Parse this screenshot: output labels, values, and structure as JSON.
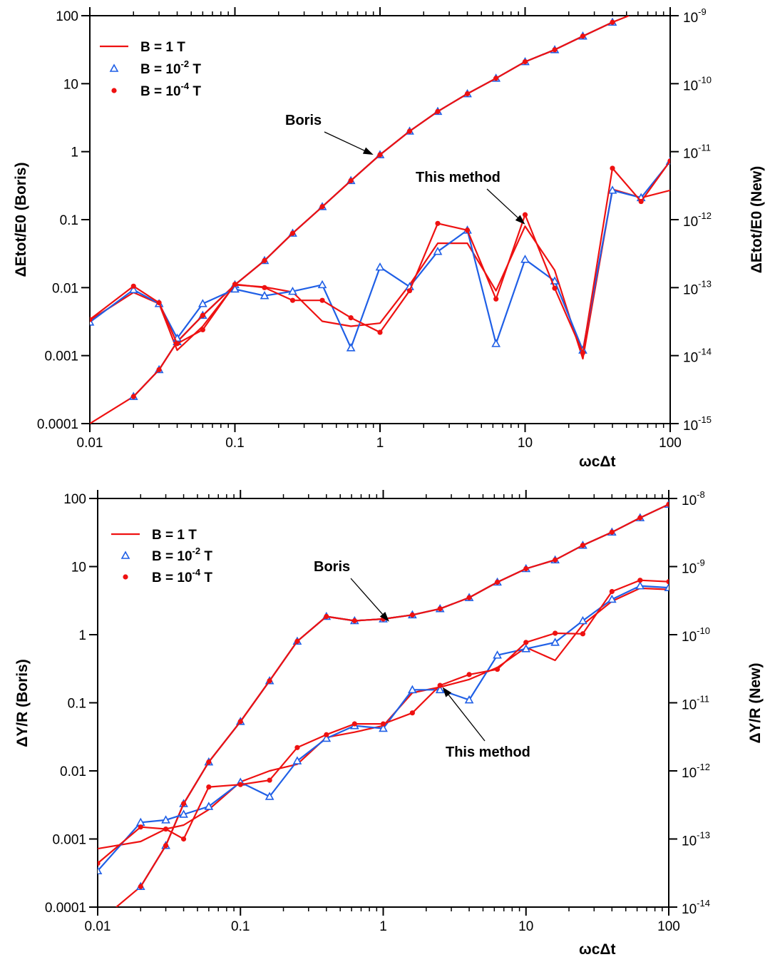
{
  "colors": {
    "red": "#ee1111",
    "blue": "#1f5fe6",
    "axis": "#000000"
  },
  "chart_data": [
    {
      "type": "line",
      "xlabel": "ωcΔt",
      "ylabel": "ΔEtot/E0 (Boris)",
      "y2label": "ΔEtot/E0 (New)",
      "x_scale": "log",
      "y_scale": "log",
      "y2_scale": "log",
      "xlim": [
        0.01,
        100
      ],
      "ylim": [
        0.0001,
        100
      ],
      "y2lim": [
        1e-15,
        1e-09
      ],
      "x_ticks": [
        "0.01",
        "0.1",
        "1",
        "10",
        "100"
      ],
      "y_ticks": [
        "0.0001",
        "0.001",
        "0.01",
        "0.1",
        "1",
        "10",
        "100"
      ],
      "y2_ticks": [
        {
          "base": "10",
          "exp": "-15"
        },
        {
          "base": "10",
          "exp": "-14"
        },
        {
          "base": "10",
          "exp": "-13"
        },
        {
          "base": "10",
          "exp": "-12"
        },
        {
          "base": "10",
          "exp": "-11"
        },
        {
          "base": "10",
          "exp": "-10"
        },
        {
          "base": "10",
          "exp": "-9"
        }
      ],
      "grid": false,
      "legend_position": "top-left",
      "legend": [
        {
          "label": "B = 1 T",
          "marker": "line",
          "color": "red"
        },
        {
          "label": "B = 10",
          "exp": "-2",
          "unit": " T",
          "marker": "triangle",
          "color": "blue"
        },
        {
          "label": "B = 10",
          "exp": "-4",
          "unit": " T",
          "marker": "circle",
          "color": "red"
        }
      ],
      "annotations": [
        {
          "text": "Boris",
          "arrow_target": [
            0.9,
            0.9
          ]
        },
        {
          "text": "This method",
          "arrow_target": [
            10,
            0.085
          ]
        }
      ],
      "series": [
        {
          "name": "Boris, B = 1 T",
          "axis": "left",
          "marker": "line",
          "color": "red",
          "x": [
            0.01,
            0.02,
            0.03,
            0.04,
            0.06,
            0.1,
            0.16,
            0.25,
            0.4,
            0.63,
            1,
            1.6,
            2.5,
            4,
            6.3,
            10,
            16,
            25,
            40,
            52
          ],
          "y": [
            0.0001,
            0.00025,
            0.00062,
            0.0016,
            0.0039,
            0.011,
            0.025,
            0.063,
            0.155,
            0.375,
            0.9,
            2.0,
            3.9,
            7.1,
            12.0,
            21.0,
            31.5,
            50.0,
            80.0,
            100.0
          ]
        },
        {
          "name": "Boris, B = 10^-2 T",
          "axis": "left",
          "marker": "triangle",
          "color": "blue",
          "x": [
            0.02,
            0.03,
            0.04,
            0.06,
            0.1,
            0.16,
            0.25,
            0.4,
            0.63,
            1,
            1.6,
            2.5,
            4,
            6.3,
            10,
            16,
            25,
            40
          ],
          "y": [
            0.00025,
            0.00062,
            0.0016,
            0.0039,
            0.011,
            0.025,
            0.063,
            0.155,
            0.375,
            0.9,
            2.0,
            3.9,
            7.1,
            12.0,
            21.0,
            31.5,
            50.0,
            80.0
          ]
        },
        {
          "name": "Boris, B = 10^-4 T",
          "axis": "left",
          "marker": "circle",
          "color": "red",
          "x": [
            0.02,
            0.03,
            0.04,
            0.06,
            0.1,
            0.16,
            0.25,
            0.4,
            0.63,
            1,
            1.6,
            2.5,
            4,
            6.3,
            10,
            16,
            25,
            40
          ],
          "y": [
            0.00025,
            0.00062,
            0.0016,
            0.0039,
            0.011,
            0.025,
            0.063,
            0.155,
            0.375,
            0.9,
            2.0,
            3.9,
            7.1,
            12.0,
            21.0,
            31.5,
            50.0,
            80.0
          ]
        },
        {
          "name": "This method, B = 1 T",
          "axis": "left",
          "marker": "line",
          "color": "red",
          "x": [
            0.01,
            0.02,
            0.03,
            0.04,
            0.06,
            0.1,
            0.16,
            0.25,
            0.4,
            0.63,
            1,
            1.6,
            2.5,
            4,
            6.3,
            10,
            16,
            25,
            40,
            63,
            100
          ],
          "y": [
            0.0033,
            0.0085,
            0.0058,
            0.0012,
            0.0027,
            0.011,
            0.0102,
            0.0086,
            0.0032,
            0.0027,
            0.003,
            0.011,
            0.045,
            0.045,
            0.009,
            0.08,
            0.018,
            0.0009,
            0.28,
            0.21,
            0.27
          ]
        },
        {
          "name": "This method, B = 10^-2 T",
          "axis": "left",
          "marker": "triangle",
          "color": "blue",
          "x": [
            0.01,
            0.02,
            0.03,
            0.04,
            0.06,
            0.1,
            0.16,
            0.25,
            0.4,
            0.63,
            1,
            1.6,
            2.5,
            4,
            6.3,
            10,
            16,
            25,
            40,
            63,
            100
          ],
          "y": [
            0.0031,
            0.0093,
            0.0058,
            0.0018,
            0.0058,
            0.0095,
            0.0076,
            0.0088,
            0.011,
            0.0013,
            0.02,
            0.0103,
            0.034,
            0.07,
            0.0015,
            0.026,
            0.0125,
            0.0012,
            0.27,
            0.21,
            0.72
          ]
        },
        {
          "name": "This method, B = 10^-4 T",
          "axis": "left",
          "marker": "circle",
          "color": "red",
          "x": [
            0.01,
            0.02,
            0.03,
            0.04,
            0.06,
            0.1,
            0.16,
            0.25,
            0.4,
            0.63,
            1,
            1.6,
            2.5,
            4,
            6.3,
            10,
            16,
            25,
            40,
            63,
            100
          ],
          "y": [
            0.0034,
            0.0105,
            0.006,
            0.0015,
            0.0024,
            0.0112,
            0.01,
            0.0065,
            0.0065,
            0.0036,
            0.0022,
            0.009,
            0.088,
            0.07,
            0.0068,
            0.118,
            0.0098,
            0.0011,
            0.57,
            0.185,
            0.73
          ]
        }
      ]
    },
    {
      "type": "line",
      "xlabel": "ωcΔt",
      "ylabel": "ΔY/R (Boris)",
      "y2label": "ΔY/R (New)",
      "x_scale": "log",
      "y_scale": "log",
      "y2_scale": "log",
      "xlim": [
        0.01,
        100
      ],
      "ylim": [
        0.0001,
        100
      ],
      "y2lim": [
        1e-14,
        1e-08
      ],
      "x_ticks": [
        "0.01",
        "0.1",
        "1",
        "10",
        "100"
      ],
      "y_ticks": [
        "0.0001",
        "0.001",
        "0.01",
        "0.1",
        "1",
        "10",
        "100"
      ],
      "y2_ticks": [
        {
          "base": "10",
          "exp": "-14"
        },
        {
          "base": "10",
          "exp": "-13"
        },
        {
          "base": "10",
          "exp": "-12"
        },
        {
          "base": "10",
          "exp": "-11"
        },
        {
          "base": "10",
          "exp": "-10"
        },
        {
          "base": "10",
          "exp": "-9"
        },
        {
          "base": "10",
          "exp": "-8"
        }
      ],
      "grid": false,
      "legend_position": "top-left",
      "legend": [
        {
          "label": "B = 1 T",
          "marker": "line",
          "color": "red"
        },
        {
          "label": "B = 10",
          "exp": "-2",
          "unit": " T",
          "marker": "triangle",
          "color": "blue"
        },
        {
          "label": "B = 10",
          "exp": "-4",
          "unit": " T",
          "marker": "circle",
          "color": "red"
        }
      ],
      "annotations": [
        {
          "text": "Boris",
          "arrow_target": [
            1.1,
            1.55
          ]
        },
        {
          "text": "This method",
          "arrow_target": [
            2.6,
            0.17
          ]
        }
      ],
      "series": [
        {
          "name": "Boris, B = 1 T",
          "axis": "left",
          "marker": "line",
          "color": "red",
          "x": [
            0.0135,
            0.02,
            0.03,
            0.04,
            0.06,
            0.1,
            0.16,
            0.25,
            0.4,
            0.63,
            1,
            1.6,
            2.5,
            4,
            6.3,
            10,
            16,
            25,
            40,
            63,
            100
          ],
          "y": [
            0.0001,
            0.0002,
            0.0008,
            0.0033,
            0.0135,
            0.053,
            0.21,
            0.8,
            1.85,
            1.6,
            1.7,
            1.95,
            2.4,
            3.5,
            5.9,
            9.3,
            12.5,
            20.5,
            32.0,
            52.0,
            82.0
          ]
        },
        {
          "name": "Boris, B = 10^-2 T",
          "axis": "left",
          "marker": "triangle",
          "color": "blue",
          "x": [
            0.02,
            0.03,
            0.04,
            0.06,
            0.1,
            0.16,
            0.25,
            0.4,
            0.63,
            1,
            1.6,
            2.5,
            4,
            6.3,
            10,
            16,
            25,
            40,
            63,
            100
          ],
          "y": [
            0.0002,
            0.0008,
            0.0033,
            0.0135,
            0.053,
            0.21,
            0.8,
            1.85,
            1.6,
            1.7,
            1.95,
            2.4,
            3.5,
            5.9,
            9.3,
            12.5,
            20.5,
            32.0,
            52.0,
            82.0
          ]
        },
        {
          "name": "Boris, B = 10^-4 T",
          "axis": "left",
          "marker": "circle",
          "color": "red",
          "x": [
            0.02,
            0.03,
            0.04,
            0.06,
            0.1,
            0.16,
            0.25,
            0.4,
            0.63,
            1,
            1.6,
            2.5,
            4,
            6.3,
            10,
            16,
            25,
            40,
            63,
            100
          ],
          "y": [
            0.0002,
            0.0008,
            0.0033,
            0.0135,
            0.053,
            0.21,
            0.8,
            1.85,
            1.6,
            1.7,
            1.95,
            2.4,
            3.5,
            5.9,
            9.3,
            12.5,
            20.5,
            32.0,
            52.0,
            82.0
          ]
        },
        {
          "name": "This method, B = 1 T",
          "axis": "left",
          "marker": "line",
          "color": "red",
          "x": [
            0.01,
            0.02,
            0.03,
            0.04,
            0.06,
            0.1,
            0.16,
            0.25,
            0.4,
            0.63,
            1,
            1.6,
            2.5,
            4,
            6.3,
            10,
            16,
            25,
            40,
            63,
            100
          ],
          "y": [
            0.00072,
            0.00092,
            0.0014,
            0.0016,
            0.0027,
            0.0069,
            0.01,
            0.0125,
            0.031,
            0.037,
            0.046,
            0.14,
            0.17,
            0.22,
            0.33,
            0.65,
            0.42,
            1.4,
            3.1,
            4.8,
            4.6
          ]
        },
        {
          "name": "This method, B = 10^-2 T",
          "axis": "left",
          "marker": "triangle",
          "color": "blue",
          "x": [
            0.01,
            0.02,
            0.03,
            0.04,
            0.06,
            0.1,
            0.16,
            0.25,
            0.4,
            0.63,
            1,
            1.6,
            2.5,
            4,
            6.3,
            10,
            16,
            25,
            40,
            63,
            100
          ],
          "y": [
            0.00034,
            0.00175,
            0.0019,
            0.0023,
            0.003,
            0.0068,
            0.0042,
            0.014,
            0.03,
            0.046,
            0.042,
            0.155,
            0.155,
            0.11,
            0.5,
            0.62,
            0.77,
            1.6,
            3.3,
            5.2,
            4.9
          ]
        },
        {
          "name": "This method, B = 10^-4 T",
          "axis": "left",
          "marker": "circle",
          "color": "red",
          "x": [
            0.01,
            0.02,
            0.03,
            0.04,
            0.06,
            0.1,
            0.16,
            0.25,
            0.4,
            0.63,
            1,
            1.6,
            2.5,
            4,
            6.3,
            10,
            16,
            25,
            40,
            63,
            100
          ],
          "y": [
            0.00044,
            0.0015,
            0.0014,
            0.001,
            0.0058,
            0.0063,
            0.0073,
            0.022,
            0.034,
            0.049,
            0.049,
            0.071,
            0.18,
            0.26,
            0.31,
            0.77,
            1.05,
            1.03,
            4.3,
            6.3,
            6.0
          ]
        }
      ]
    }
  ]
}
